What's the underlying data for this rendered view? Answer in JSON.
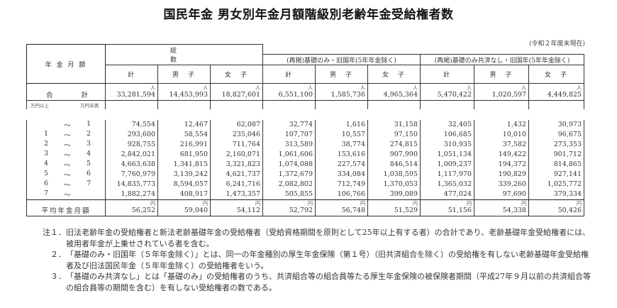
{
  "title": "国民年金 男女別年金月額階級別老齢年金受給権者数",
  "as_of": "(令和２年度末現在)",
  "table": {
    "row_header_label": "年 金 月 額",
    "groups": [
      {
        "label": "総　　　　数"
      },
      {
        "label": "(再掲)基礎のみ・旧国年(5年年金除く)"
      },
      {
        "label": "(再掲)基礎のみ共済なし・旧国年(5年年金除く)"
      }
    ],
    "subheaders": [
      "計",
      "男　子",
      "女　子"
    ],
    "unit_person": "人",
    "unit_yen": "円",
    "unit_lower": "万円以上",
    "unit_upper": "万円未満",
    "total_row": {
      "label_left": "合",
      "label_right": "計",
      "values": [
        "33,281,594",
        "14,453,993",
        "18,827,601",
        "6,551,100",
        "1,585,736",
        "4,965,364",
        "5,470,422",
        "1,020,597",
        "4,449,825"
      ]
    },
    "rows": [
      {
        "from": "",
        "to": "1",
        "values": [
          "74,554",
          "12,467",
          "62,087",
          "32,774",
          "1,616",
          "31,158",
          "32,405",
          "1,432",
          "30,973"
        ]
      },
      {
        "from": "1",
        "to": "2",
        "values": [
          "293,600",
          "58,554",
          "235,046",
          "107,707",
          "10,557",
          "97,150",
          "106,685",
          "10,010",
          "96,675"
        ]
      },
      {
        "from": "2",
        "to": "3",
        "values": [
          "928,755",
          "216,991",
          "711,764",
          "313,589",
          "38,774",
          "274,815",
          "310,935",
          "37,582",
          "273,353"
        ]
      },
      {
        "from": "3",
        "to": "4",
        "values": [
          "2,842,021",
          "681,950",
          "2,160,071",
          "1,061,606",
          "153,616",
          "907,990",
          "1,051,134",
          "149,422",
          "901,712"
        ]
      },
      {
        "from": "4",
        "to": "5",
        "values": [
          "4,663,638",
          "1,341,815",
          "3,321,823",
          "1,074,088",
          "227,574",
          "846,514",
          "1,009,237",
          "194,372",
          "814,865"
        ]
      },
      {
        "from": "5",
        "to": "6",
        "values": [
          "7,760,979",
          "3,139,242",
          "4,621,737",
          "1,372,679",
          "334,084",
          "1,038,595",
          "1,117,970",
          "190,829",
          "927,141"
        ]
      },
      {
        "from": "6",
        "to": "7",
        "values": [
          "14,835,773",
          "8,594,057",
          "6,241,716",
          "2,082,802",
          "712,749",
          "1,370,053",
          "1,365,032",
          "339,260",
          "1,025,772"
        ]
      },
      {
        "from": "7",
        "to": "",
        "values": [
          "1,882,274",
          "408,917",
          "1,473,357",
          "505,855",
          "106,766",
          "399,089",
          "477,024",
          "97,690",
          "379,334"
        ]
      }
    ],
    "tilde": "～",
    "average_row": {
      "label": "平均年金月額",
      "values": [
        "56,252",
        "59,040",
        "54,112",
        "52,792",
        "56,748",
        "51,529",
        "51,156",
        "54,338",
        "50,426"
      ]
    }
  },
  "notes": [
    {
      "num": "注１．",
      "text": "旧法老齢年金の受給権者と新法老齢基礎年金の受給権者（受給資格期間を原則として25年以上有する者）の合計であり、老齢基礎年金受給権者には、被用者年金が上乗せされている者を含む。"
    },
    {
      "num": "　２．",
      "text": "「基礎のみ・旧国年（５年年金除く）」とは、同一の年金種別の厚生年金保険（第１号）（旧共済組合を除く）の受給権を有しない老齢基礎年金受給権者及び旧法国民年金（５年年金除く）の受給権者をいう。"
    },
    {
      "num": "　３．",
      "text": "「基礎のみ共済なし」とは「基礎のみ」の受給権者のうち、共済組合等の組合員等たる厚生年金保険の被保険者期間（平成27年９月以前の共済組合等の組合員等の期間を含む）を有しない受給権者の数である。"
    }
  ]
}
